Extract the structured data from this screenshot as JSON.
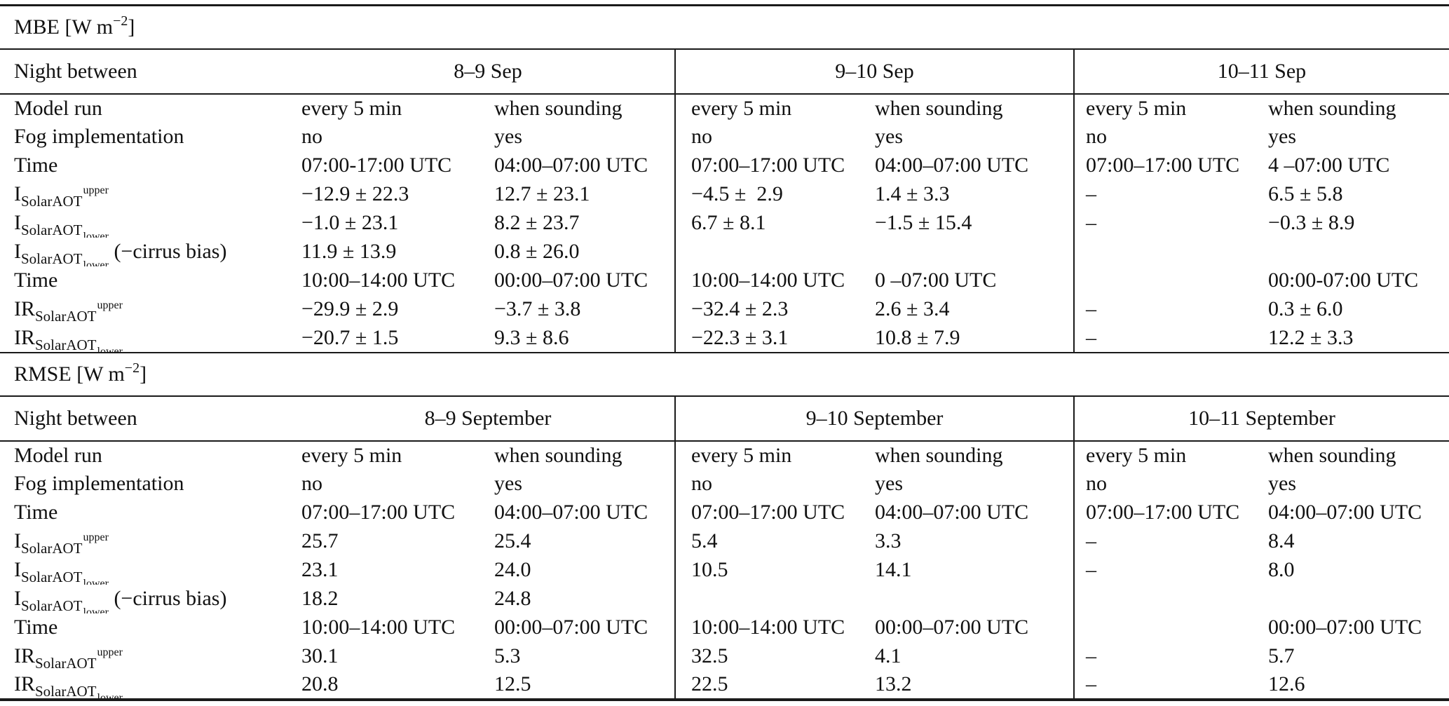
{
  "sections": [
    {
      "id": "mbe",
      "title": {
        "text": "MBE [W m",
        "sup": "−2",
        "close": "]"
      },
      "header": {
        "label": "Night between",
        "nights": [
          "8–9 Sep",
          "9–10 Sep",
          "10–11 Sep"
        ]
      },
      "rows": [
        {
          "label": {
            "type": "plain",
            "text": "Model run"
          },
          "cells": [
            "every 5 min",
            "when sounding",
            "every 5 min",
            "when sounding",
            "every 5 min",
            "when sounding"
          ]
        },
        {
          "label": {
            "type": "plain",
            "text": "Fog implementation"
          },
          "cells": [
            "no",
            "yes",
            "no",
            "yes",
            "no",
            "yes"
          ]
        },
        {
          "label": {
            "type": "plain",
            "text": "Time"
          },
          "cells": [
            "07:00-17:00 UTC",
            "04:00–07:00 UTC",
            "07:00–17:00 UTC",
            "04:00–07:00 UTC",
            "07:00–17:00 UTC",
            "4 –07:00 UTC"
          ]
        },
        {
          "label": {
            "type": "formula",
            "base": "I",
            "sub": "SolarAOT",
            "sup": "upper"
          },
          "cells": [
            "−12.9 ± 22.3",
            "12.7 ± 23.1",
            "−4.5 ±  2.9",
            "1.4 ± 3.3",
            "–",
            "6.5 ± 5.8"
          ]
        },
        {
          "label": {
            "type": "formula",
            "base": "I",
            "sub": "SolarAOT",
            "subsub": "lower"
          },
          "cells": [
            "−1.0 ± 23.1",
            "8.2 ± 23.7",
            "6.7 ± 8.1",
            "−1.5 ± 15.4",
            "–",
            "−0.3 ± 8.9"
          ]
        },
        {
          "label": {
            "type": "formula",
            "base": "I",
            "sub": "SolarAOT",
            "subsub": "lower",
            "suffix": " (−cirrus bias)"
          },
          "cells": [
            "11.9 ± 13.9",
            "0.8 ± 26.0",
            "",
            "",
            "",
            ""
          ]
        },
        {
          "label": {
            "type": "plain",
            "text": "Time"
          },
          "cells": [
            "10:00–14:00 UTC",
            "00:00–07:00 UTC",
            "10:00–14:00 UTC",
            "0 –07:00 UTC",
            "",
            "00:00-07:00 UTC"
          ]
        },
        {
          "label": {
            "type": "formula",
            "base": "IR",
            "sub": "SolarAOT",
            "sup": "upper"
          },
          "cells": [
            "−29.9 ± 2.9",
            "−3.7 ± 3.8",
            "−32.4 ± 2.3",
            "2.6 ± 3.4",
            "–",
            "0.3 ± 6.0"
          ]
        },
        {
          "label": {
            "type": "formula",
            "base": "IR",
            "sub": "SolarAOT",
            "subsub": "lower"
          },
          "cells": [
            "−20.7 ± 1.5",
            "9.3 ± 8.6",
            "−22.3 ± 3.1",
            "10.8 ± 7.9",
            "–",
            "12.2 ± 3.3"
          ]
        }
      ]
    },
    {
      "id": "rmse",
      "title": {
        "text": "RMSE [W m",
        "sup": "−2",
        "close": "]"
      },
      "header": {
        "label": "Night between",
        "nights": [
          "8–9 September",
          "9–10 September",
          "10–11 September"
        ]
      },
      "rows": [
        {
          "label": {
            "type": "plain",
            "text": "Model run"
          },
          "cells": [
            "every 5 min",
            "when sounding",
            "every 5 min",
            "when sounding",
            "every 5 min",
            "when sounding"
          ]
        },
        {
          "label": {
            "type": "plain",
            "text": "Fog implementation"
          },
          "cells": [
            "no",
            "yes",
            "no",
            "yes",
            "no",
            "yes"
          ]
        },
        {
          "label": {
            "type": "plain",
            "text": "Time"
          },
          "cells": [
            "07:00–17:00 UTC",
            "04:00–07:00 UTC",
            "07:00–17:00 UTC",
            "04:00–07:00 UTC",
            "07:00–17:00 UTC",
            "04:00–07:00 UTC"
          ]
        },
        {
          "label": {
            "type": "formula",
            "base": "I",
            "sub": "SolarAOT",
            "sup": "upper"
          },
          "cells": [
            "25.7",
            "25.4",
            "5.4",
            "3.3",
            "–",
            "8.4"
          ]
        },
        {
          "label": {
            "type": "formula",
            "base": "I",
            "sub": "SolarAOT",
            "subsub": "lower"
          },
          "cells": [
            "23.1",
            "24.0",
            "10.5",
            "14.1",
            "–",
            "8.0"
          ]
        },
        {
          "label": {
            "type": "formula",
            "base": "I",
            "sub": "SolarAOT",
            "subsub": "lower",
            "suffix": " (−cirrus bias)"
          },
          "cells": [
            "18.2",
            "24.8",
            "",
            "",
            "",
            ""
          ]
        },
        {
          "label": {
            "type": "plain",
            "text": "Time"
          },
          "cells": [
            "10:00–14:00 UTC",
            "00:00–07:00 UTC",
            "10:00–14:00 UTC",
            "00:00–07:00 UTC",
            "",
            "00:00–07:00 UTC"
          ]
        },
        {
          "label": {
            "type": "formula",
            "base": "IR",
            "sub": "SolarAOT",
            "sup": "upper"
          },
          "cells": [
            "30.1",
            "5.3",
            "32.5",
            "4.1",
            "–",
            "5.7"
          ]
        },
        {
          "label": {
            "type": "formula",
            "base": "IR",
            "sub": "SolarAOT",
            "subsub": "lower"
          },
          "cells": [
            "20.8",
            "12.5",
            "22.5",
            "13.2",
            "–",
            "12.6"
          ]
        }
      ]
    }
  ]
}
